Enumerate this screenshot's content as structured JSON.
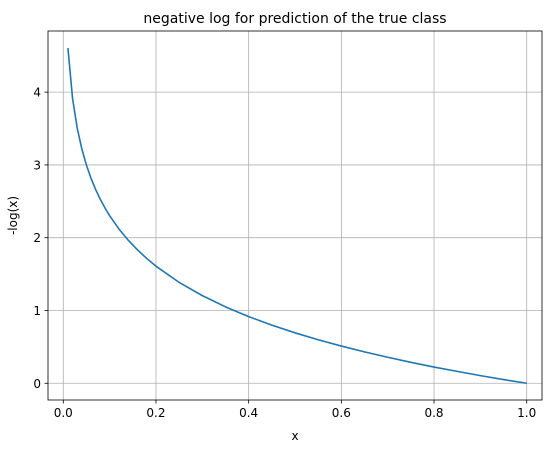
{
  "chart_data": {
    "type": "line",
    "title": "negative log for prediction of the true class",
    "xlabel": "x",
    "ylabel": "-log(x)",
    "xlim": [
      -0.033,
      1.033
    ],
    "ylim": [
      -0.23,
      4.84
    ],
    "xticks": [
      0.0,
      0.2,
      0.4,
      0.6,
      0.8,
      1.0
    ],
    "xtick_labels": [
      "0.0",
      "0.2",
      "0.4",
      "0.6",
      "0.8",
      "1.0"
    ],
    "yticks": [
      0,
      1,
      2,
      3,
      4
    ],
    "ytick_labels": [
      "0",
      "1",
      "2",
      "3",
      "4"
    ],
    "grid": true,
    "series": [
      {
        "color": "#1f77b4",
        "x": [
          0.01,
          0.02,
          0.03,
          0.04,
          0.05,
          0.06,
          0.07,
          0.08,
          0.09,
          0.1,
          0.12,
          0.14,
          0.16,
          0.18,
          0.2,
          0.25,
          0.3,
          0.35,
          0.4,
          0.45,
          0.5,
          0.55,
          0.6,
          0.65,
          0.7,
          0.75,
          0.8,
          0.85,
          0.9,
          0.95,
          1.0
        ],
        "y": [
          4.605,
          3.912,
          3.507,
          3.219,
          2.996,
          2.813,
          2.659,
          2.526,
          2.408,
          2.303,
          2.12,
          1.966,
          1.833,
          1.715,
          1.609,
          1.386,
          1.204,
          1.05,
          0.916,
          0.799,
          0.693,
          0.598,
          0.511,
          0.431,
          0.357,
          0.288,
          0.223,
          0.163,
          0.105,
          0.051,
          0.0
        ]
      }
    ]
  }
}
